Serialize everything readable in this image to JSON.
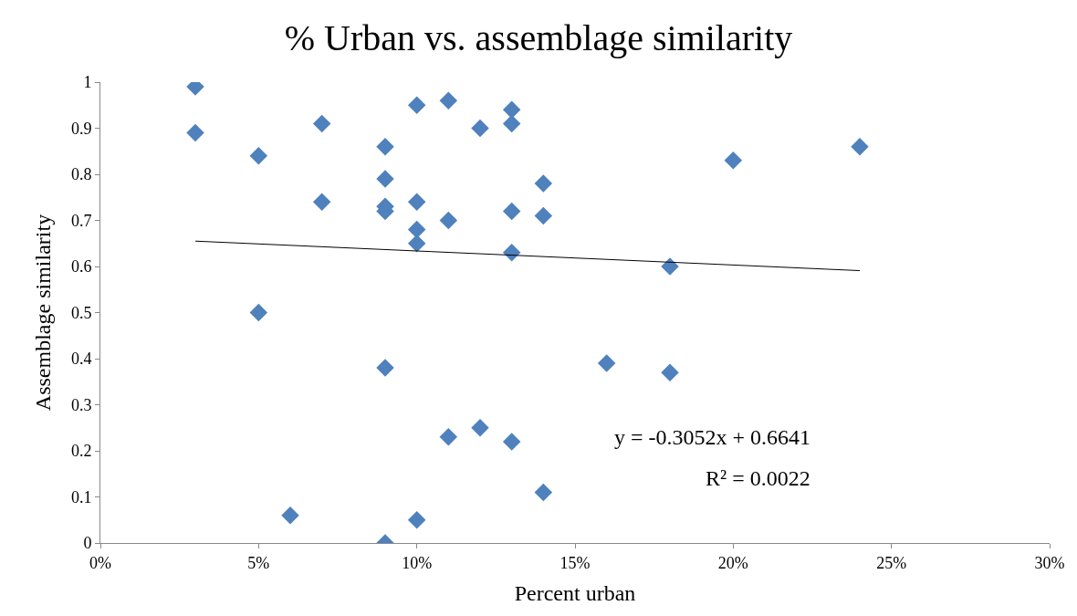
{
  "chart_data": {
    "type": "scatter",
    "title": "% Urban vs. assemblage similarity",
    "xlabel": "Percent urban",
    "ylabel": "Assemblage similarity",
    "x": [
      0.03,
      0.03,
      0.05,
      0.05,
      0.06,
      0.07,
      0.07,
      0.09,
      0.09,
      0.09,
      0.09,
      0.09,
      0.09,
      0.1,
      0.1,
      0.1,
      0.1,
      0.1,
      0.11,
      0.11,
      0.11,
      0.12,
      0.12,
      0.13,
      0.13,
      0.13,
      0.13,
      0.13,
      0.14,
      0.14,
      0.14,
      0.16,
      0.18,
      0.18,
      0.2,
      0.24
    ],
    "series": [
      {
        "color": "#4f81bd",
        "marker": "diamond",
        "values": [
          0.99,
          0.89,
          0.84,
          0.5,
          0.06,
          0.91,
          0.74,
          0.86,
          0.79,
          0.73,
          0.72,
          0.38,
          0.0,
          0.95,
          0.74,
          0.68,
          0.65,
          0.05,
          0.96,
          0.7,
          0.23,
          0.9,
          0.25,
          0.94,
          0.91,
          0.72,
          0.63,
          0.22,
          0.78,
          0.71,
          0.11,
          0.39,
          0.6,
          0.37,
          0.83,
          0.86
        ]
      },
      {
        "type": "line",
        "color": "#000000",
        "marker": "none",
        "x": [
          0.03,
          0.24
        ],
        "values": [
          0.655,
          0.591
        ]
      }
    ],
    "annotations": [
      "y = -0.3052x + 0.6641",
      "R² = 0.0022"
    ],
    "xlim": [
      0,
      0.3
    ],
    "xticks": [
      {
        "value": 0,
        "label": "0%"
      },
      {
        "value": 0.05,
        "label": "5%"
      },
      {
        "value": 0.1,
        "label": "10%"
      },
      {
        "value": 0.15,
        "label": "15%"
      },
      {
        "value": 0.2,
        "label": "20%"
      },
      {
        "value": 0.25,
        "label": "25%"
      },
      {
        "value": 0.3,
        "label": "30%"
      }
    ],
    "ylim": [
      0,
      1
    ],
    "yticks": [
      0,
      0.1,
      0.2,
      0.3,
      0.4,
      0.5,
      0.6,
      0.7,
      0.8,
      0.9,
      1
    ],
    "grid": false
  }
}
